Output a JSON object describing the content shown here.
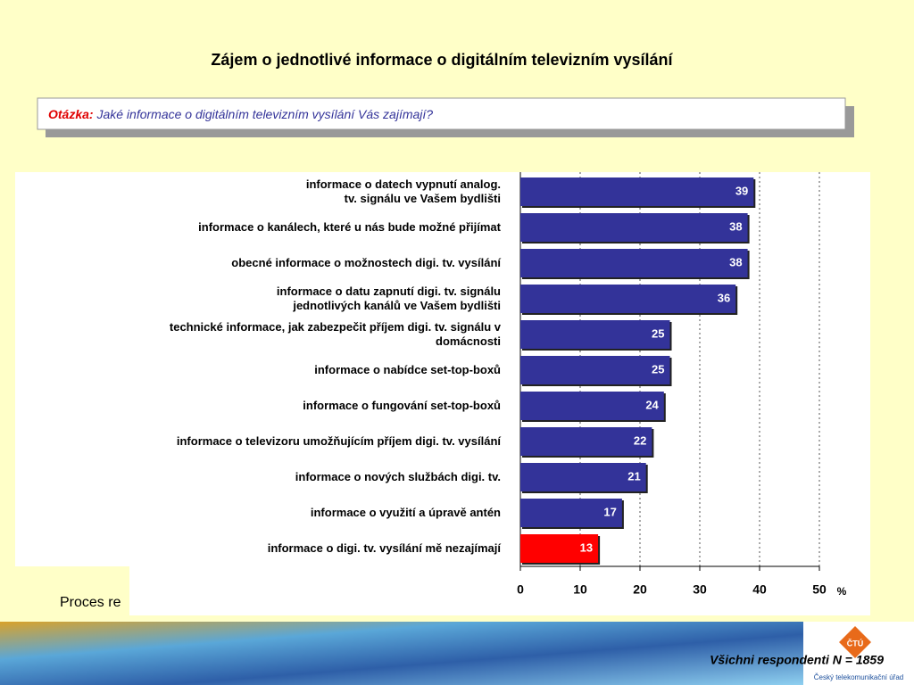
{
  "chart_data": {
    "type": "bar",
    "orientation": "horizontal",
    "title": "Zájem o jednotlivé informace o digitálním televizním vysílání",
    "question_label": "Otázka:",
    "question": "Jaké informace o digitálním televizním vysílání Vás zajímají?",
    "categories": [
      "informace o datech vypnutí analog.\ntv. signálu ve Vašem bydlišti",
      "informace o kanálech, které u nás bude možné přijímat",
      "obecné informace o možnostech digi.  tv. vysílání",
      "informace o datu zapnutí digi.  tv.  signálu\njednotlivých kanálů ve Vašem bydlišti",
      "technické informace, jak zabezpečit příjem digi.  tv. signálu v\ndomácnosti",
      "informace o nabídce set-top-boxů",
      "informace o fungování set-top-boxů",
      "informace o televizoru umožňujícím příjem digi. tv. vysílání",
      "informace o nových službách digi. tv.",
      "informace o využití a úpravě antén",
      "informace o digi. tv. vysílání mě nezajímají"
    ],
    "values": [
      39,
      38,
      38,
      36,
      25,
      25,
      24,
      22,
      21,
      17,
      13
    ],
    "colors": [
      "#333399",
      "#333399",
      "#333399",
      "#333399",
      "#333399",
      "#333399",
      "#333399",
      "#333399",
      "#333399",
      "#333399",
      "#ff0000"
    ],
    "xlim": [
      0,
      50
    ],
    "xticks": [
      0,
      10,
      20,
      30,
      40,
      50
    ],
    "x_unit": "%",
    "grid": true,
    "note": "Všichni respondenti N = 1859",
    "hidden_text": "Proces re",
    "logo_text": "ČTÚ",
    "logo_caption": "Český telekomunikační úřad"
  }
}
